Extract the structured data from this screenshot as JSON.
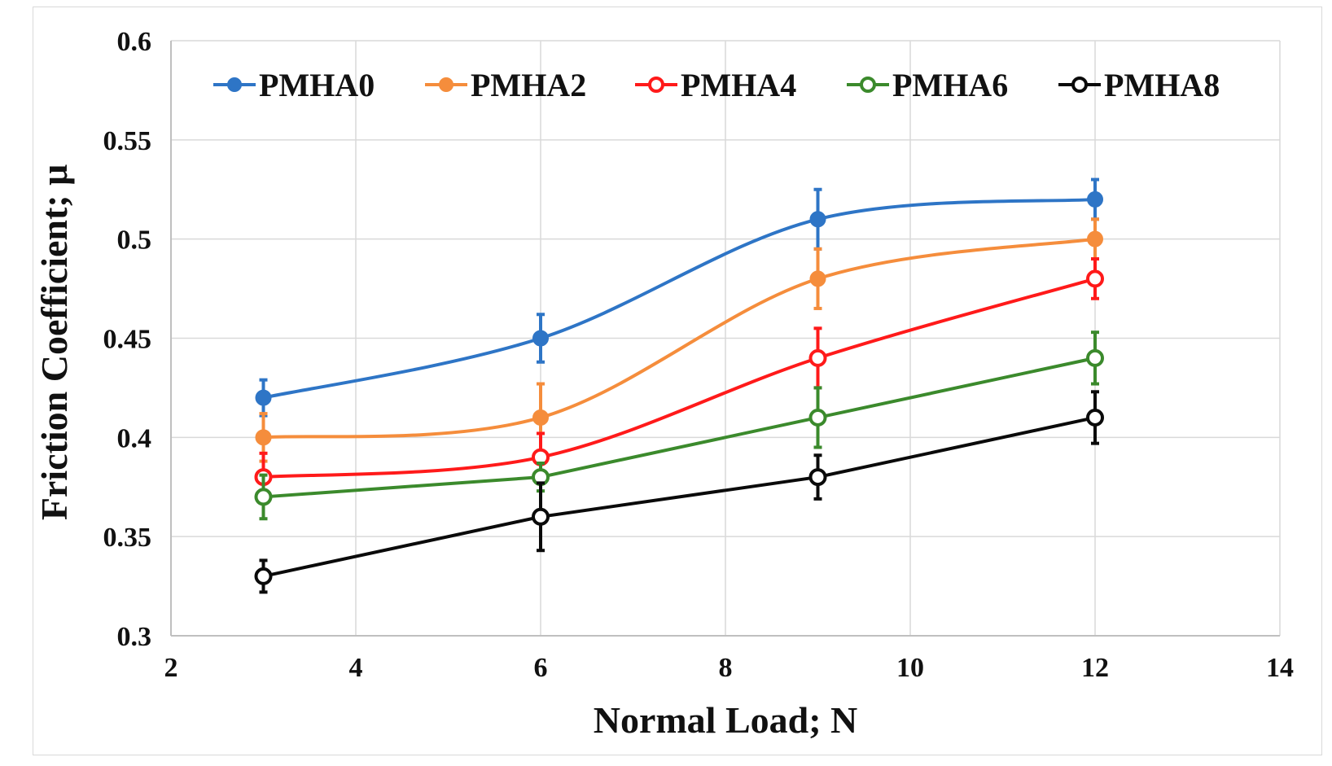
{
  "chart_data": {
    "type": "line",
    "title": "",
    "xlabel": "Normal Load; N",
    "ylabel": "Friction Coefficient; μ",
    "xlim": [
      2,
      14
    ],
    "ylim": [
      0.3,
      0.6
    ],
    "xticks": [
      2,
      4,
      6,
      8,
      10,
      12,
      14
    ],
    "yticks": [
      0.3,
      0.35,
      0.4,
      0.45,
      0.5,
      0.55,
      0.6
    ],
    "xtick_labels": [
      "2",
      "4",
      "6",
      "8",
      "10",
      "12",
      "14"
    ],
    "ytick_labels": [
      "0.3",
      "0.35",
      "0.4",
      "0.45",
      "0.5",
      "0.55",
      "0.6"
    ],
    "grid": true,
    "legend_position": "top",
    "x": [
      3,
      6,
      9,
      12
    ],
    "series": [
      {
        "name": "PMHA0",
        "color": "#2e75c6",
        "marker": "filled",
        "smooth": true,
        "values": [
          0.42,
          0.45,
          0.51,
          0.52
        ],
        "errors": [
          0.009,
          0.012,
          0.015,
          0.01
        ]
      },
      {
        "name": "PMHA2",
        "color": "#f58d3c",
        "marker": "filled",
        "smooth": true,
        "values": [
          0.4,
          0.41,
          0.48,
          0.5
        ],
        "errors": [
          0.012,
          0.017,
          0.015,
          0.01
        ]
      },
      {
        "name": "PMHA4",
        "color": "#ff1a1a",
        "marker": "hollow",
        "smooth": true,
        "values": [
          0.38,
          0.39,
          0.44,
          0.48
        ],
        "errors": [
          0.012,
          0.012,
          0.015,
          0.01
        ]
      },
      {
        "name": "PMHA6",
        "color": "#3b8a2c",
        "marker": "hollow",
        "smooth": false,
        "values": [
          0.37,
          0.38,
          0.41,
          0.44
        ],
        "errors": [
          0.011,
          0.007,
          0.015,
          0.013
        ]
      },
      {
        "name": "PMHA8",
        "color": "#0a0a0a",
        "marker": "hollow",
        "smooth": false,
        "values": [
          0.33,
          0.36,
          0.38,
          0.41
        ],
        "errors": [
          0.008,
          0.017,
          0.011,
          0.013
        ]
      }
    ]
  }
}
